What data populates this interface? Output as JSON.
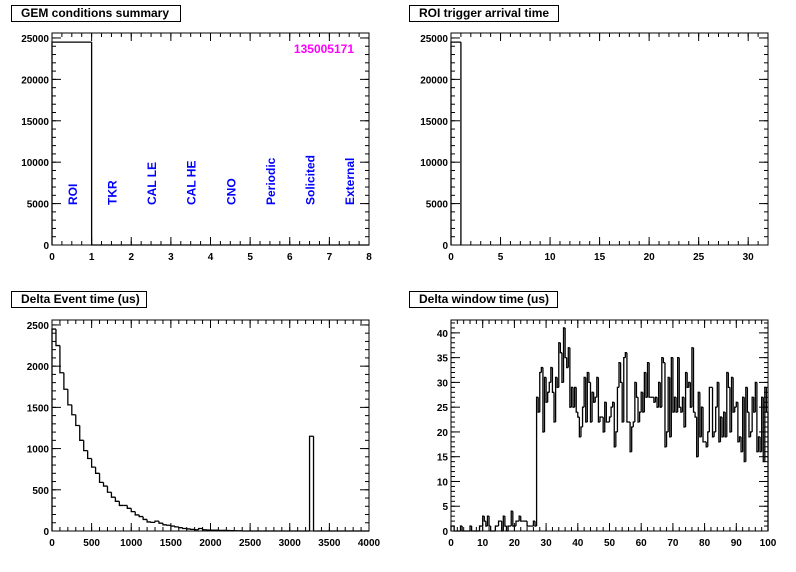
{
  "chart_data": [
    {
      "type": "bar",
      "title": "GEM conditions summary",
      "xlim": [
        0,
        8
      ],
      "ylim": [
        0,
        25600
      ],
      "xticks": [
        0,
        1,
        2,
        3,
        4,
        5,
        6,
        7,
        8
      ],
      "yticks": [
        0,
        5000,
        10000,
        15000,
        20000,
        25000
      ],
      "bin_width": 1,
      "values": [
        24500,
        0,
        0,
        0,
        0,
        0,
        0,
        0
      ],
      "categories": [
        "ROI",
        "TKR",
        "CAL LE",
        "CAL HE",
        "CNO",
        "Periodic",
        "Solicited",
        "External"
      ],
      "category_color": "#0000ff",
      "annotation": "135005171",
      "annotation_color": "#ff00ff"
    },
    {
      "type": "bar",
      "title": "ROI trigger arrival time",
      "xlim": [
        0,
        32
      ],
      "ylim": [
        0,
        25600
      ],
      "xticks": [
        0,
        5,
        10,
        15,
        20,
        25,
        30
      ],
      "yticks": [
        0,
        5000,
        10000,
        15000,
        20000,
        25000
      ],
      "bin_width": 1,
      "values": [
        24500
      ]
    },
    {
      "type": "bar",
      "title": "Delta Event time (us)",
      "xlim": [
        0,
        4000
      ],
      "ylim": [
        0,
        2560
      ],
      "xticks": [
        0,
        500,
        1000,
        1500,
        2000,
        2500,
        3000,
        3500,
        4000
      ],
      "yticks": [
        0,
        500,
        1000,
        1500,
        2000,
        2500
      ],
      "bin_width": 50,
      "values": [
        2450,
        2250,
        1920,
        1720,
        1530,
        1410,
        1280,
        1100,
        975,
        880,
        775,
        700,
        590,
        545,
        470,
        410,
        360,
        310,
        310,
        275,
        235,
        195,
        175,
        140,
        110,
        105,
        120,
        95,
        75,
        70,
        60,
        50,
        40,
        30,
        25,
        20,
        15,
        30,
        15,
        12,
        10,
        10,
        8,
        8,
        6,
        5,
        3,
        2,
        0,
        0,
        0,
        0,
        0,
        0,
        0,
        0,
        0,
        0,
        0,
        0,
        0,
        0,
        0,
        0,
        0,
        1150,
        0,
        0,
        0,
        0,
        0,
        0,
        0,
        0,
        0,
        0,
        0,
        0,
        0,
        0
      ]
    },
    {
      "type": "bar",
      "title": "Delta window time (us)",
      "xlim": [
        0,
        100
      ],
      "ylim": [
        0,
        42.6
      ],
      "xticks": [
        0,
        10,
        20,
        30,
        40,
        50,
        60,
        70,
        80,
        90,
        100
      ],
      "yticks": [
        0,
        5,
        10,
        15,
        20,
        25,
        30,
        35,
        40
      ],
      "bin_width": 0.5,
      "values": [
        1,
        1,
        0,
        0,
        0,
        0,
        1,
        0,
        0,
        0,
        0,
        0,
        1,
        0,
        0,
        0,
        0,
        0,
        1,
        1,
        3,
        2,
        1,
        3,
        1,
        0,
        0,
        0,
        1,
        1,
        2,
        2,
        0,
        3,
        1,
        0,
        1,
        1,
        4,
        1,
        1,
        2,
        2,
        3,
        2,
        2,
        2,
        2,
        1,
        1,
        1,
        1,
        2,
        1,
        27,
        24,
        32,
        33,
        20,
        31,
        26,
        28,
        30,
        33,
        28,
        22,
        31,
        29,
        38,
        36,
        30,
        41,
        35,
        33,
        37,
        25,
        29,
        25,
        29,
        24,
        23,
        19,
        21,
        25,
        31,
        22,
        32,
        30,
        22,
        28,
        26,
        27,
        31,
        22,
        23,
        23,
        20,
        26,
        22,
        22,
        23,
        25,
        26,
        17,
        20,
        29,
        34,
        30,
        22,
        35,
        36,
        22,
        22,
        16,
        21,
        22,
        30,
        27,
        22,
        24,
        28,
        24,
        32,
        27,
        34,
        27,
        27,
        27,
        26,
        27,
        25,
        30,
        25,
        35,
        34,
        17,
        20,
        31,
        19,
        35,
        24,
        27,
        24,
        35,
        25,
        24,
        27,
        21,
        32,
        29,
        30,
        25,
        37,
        24,
        23,
        15,
        28,
        19,
        25,
        18,
        18,
        17,
        20,
        29,
        29,
        19,
        20,
        25,
        30,
        18,
        23,
        19,
        24,
        19,
        32,
        29,
        20,
        31,
        24,
        25,
        26,
        18,
        19,
        16,
        27,
        14,
        29,
        24,
        19,
        20,
        27,
        24,
        30,
        16,
        19,
        16,
        27,
        14,
        29,
        24
      ]
    }
  ]
}
